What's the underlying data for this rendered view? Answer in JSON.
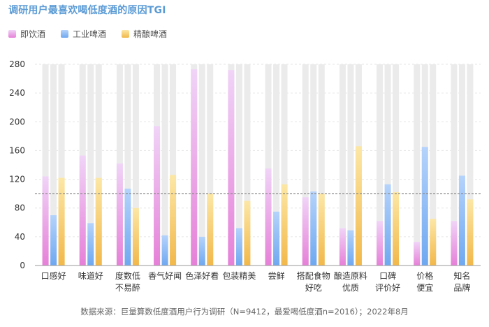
{
  "title": "调研用户最喜欢喝低度酒的原因TGI",
  "source": "数据来源：巨量算数低度酒用户行为调研（N=9412，最爱喝低度酒n=2016）；2022年8月",
  "chart_data": {
    "type": "bar",
    "categories": [
      [
        "口感好"
      ],
      [
        "味道好"
      ],
      [
        "度数低",
        "不易醉"
      ],
      [
        "香气好闻"
      ],
      [
        "色泽好看"
      ],
      [
        "包装精美"
      ],
      [
        "尝鲜"
      ],
      [
        "搭配食物",
        "好吃"
      ],
      [
        "酿造原料",
        "优质"
      ],
      [
        "口碑",
        "评价好"
      ],
      [
        "价格",
        "便宜"
      ],
      [
        "知名",
        "品牌"
      ]
    ],
    "series": [
      {
        "name": "即饮酒",
        "color_top": "#f0d4f7",
        "color_bottom": "#e680d8",
        "values": [
          124,
          153,
          142,
          194,
          273,
          272,
          135,
          95,
          52,
          62,
          33,
          62
        ]
      },
      {
        "name": "工业啤酒",
        "color_top": "#b5d3fb",
        "color_bottom": "#6fa8f0",
        "values": [
          70,
          59,
          107,
          42,
          40,
          52,
          75,
          103,
          49,
          113,
          165,
          125
        ]
      },
      {
        "name": "精酿啤酒",
        "color_top": "#fce7a6",
        "color_bottom": "#f2b84a",
        "values": [
          122,
          122,
          80,
          126,
          100,
          90,
          113,
          100,
          166,
          102,
          65,
          92
        ]
      }
    ],
    "ylim": [
      0,
      280
    ],
    "yticks": [
      0,
      40,
      80,
      120,
      160,
      200,
      240,
      280
    ],
    "reference_line": 100,
    "background_bar_color": "#ebebeb",
    "grid": true
  }
}
